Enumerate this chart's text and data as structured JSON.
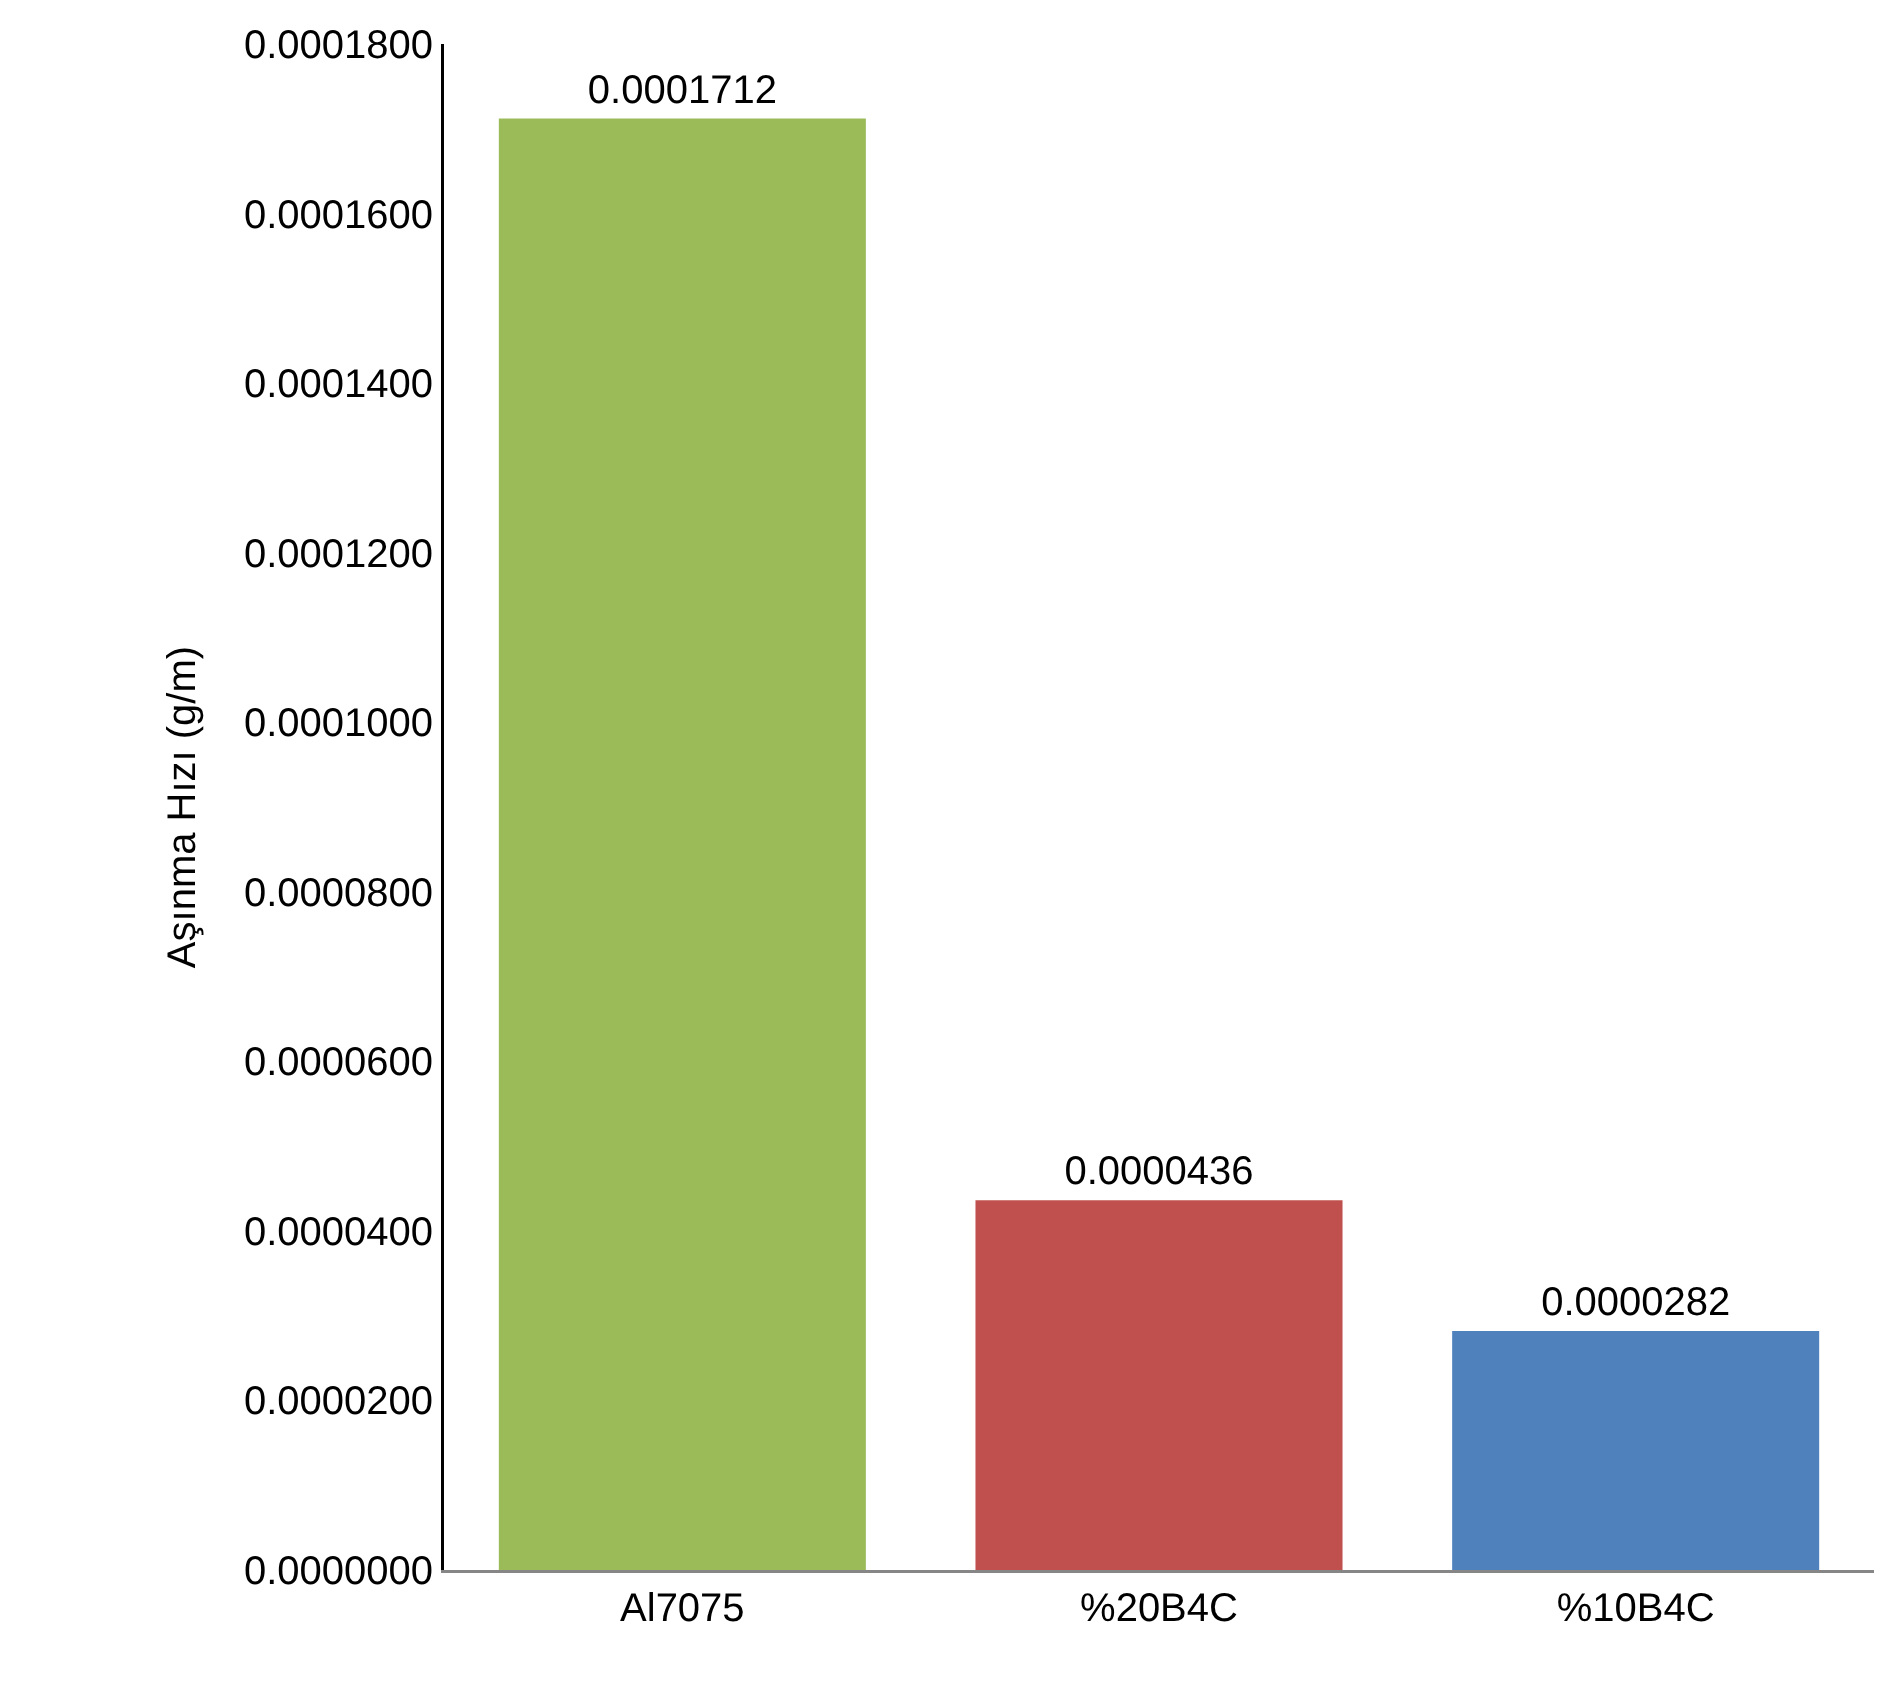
{
  "chart_data": {
    "type": "bar",
    "ylabel": "Aşınma Hızı (g/m)",
    "categories": [
      "Al7075",
      "%20B4C",
      "%10B4C"
    ],
    "values": [
      0.0001712,
      4.36e-05,
      2.82e-05
    ],
    "colors": [
      "#9bbb59",
      "#c0504d",
      "#4f81bd"
    ],
    "value_labels": [
      "0.0001712",
      "0.0000436",
      "0.0000282"
    ],
    "ylim": [
      0,
      0.00018
    ],
    "yticks": [
      {
        "value": 0,
        "label": "0.0000000"
      },
      {
        "value": 2e-05,
        "label": "0.0000200"
      },
      {
        "value": 4e-05,
        "label": "0.0000400"
      },
      {
        "value": 6e-05,
        "label": "0.0000600"
      },
      {
        "value": 8e-05,
        "label": "0.0000800"
      },
      {
        "value": 0.0001,
        "label": "0.0001000"
      },
      {
        "value": 0.00012,
        "label": "0.0001200"
      },
      {
        "value": 0.00014,
        "label": "0.0001400"
      },
      {
        "value": 0.00016,
        "label": "0.0001600"
      },
      {
        "value": 0.00018,
        "label": "0.0001800"
      }
    ]
  }
}
